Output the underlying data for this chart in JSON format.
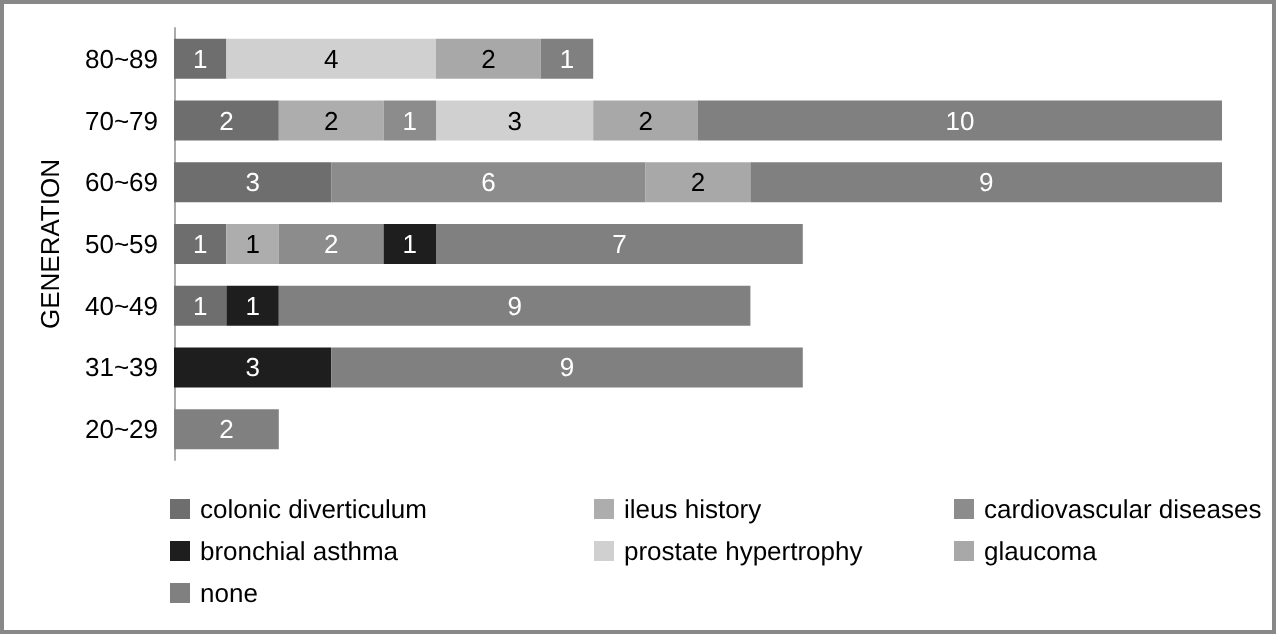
{
  "chart_data": {
    "type": "bar",
    "orientation": "horizontal",
    "stacked": true,
    "data_labels": true,
    "ylabel": "GENERATION",
    "categories": [
      "80~89",
      "70~79",
      "60~69",
      "50~59",
      "40~49",
      "31~39",
      "20~29"
    ],
    "tick_labels": "y",
    "legend": "bottom",
    "series": [
      {
        "name": "colonic diverticulum",
        "color": "#6e6e6e",
        "values": [
          1,
          2,
          3,
          1,
          1,
          null,
          null
        ]
      },
      {
        "name": "ileus history",
        "color": "#adadad",
        "values": [
          null,
          2,
          null,
          1,
          null,
          null,
          null
        ]
      },
      {
        "name": "cardiovascular diseases",
        "color": "#8c8c8c",
        "values": [
          null,
          1,
          6,
          2,
          null,
          null,
          null
        ]
      },
      {
        "name": "bronchial asthma",
        "color": "#1e1e1e",
        "values": [
          null,
          null,
          null,
          1,
          1,
          3,
          null
        ]
      },
      {
        "name": "prostate hypertrophy",
        "color": "#d0d0d0",
        "values": [
          4,
          3,
          null,
          null,
          null,
          null,
          null
        ]
      },
      {
        "name": "glaucoma",
        "color": "#a8a8a8",
        "values": [
          2,
          2,
          2,
          null,
          null,
          null,
          null
        ]
      },
      {
        "name": "none",
        "color": "#808080",
        "values": [
          1,
          10,
          9,
          7,
          9,
          9,
          2
        ]
      }
    ]
  }
}
